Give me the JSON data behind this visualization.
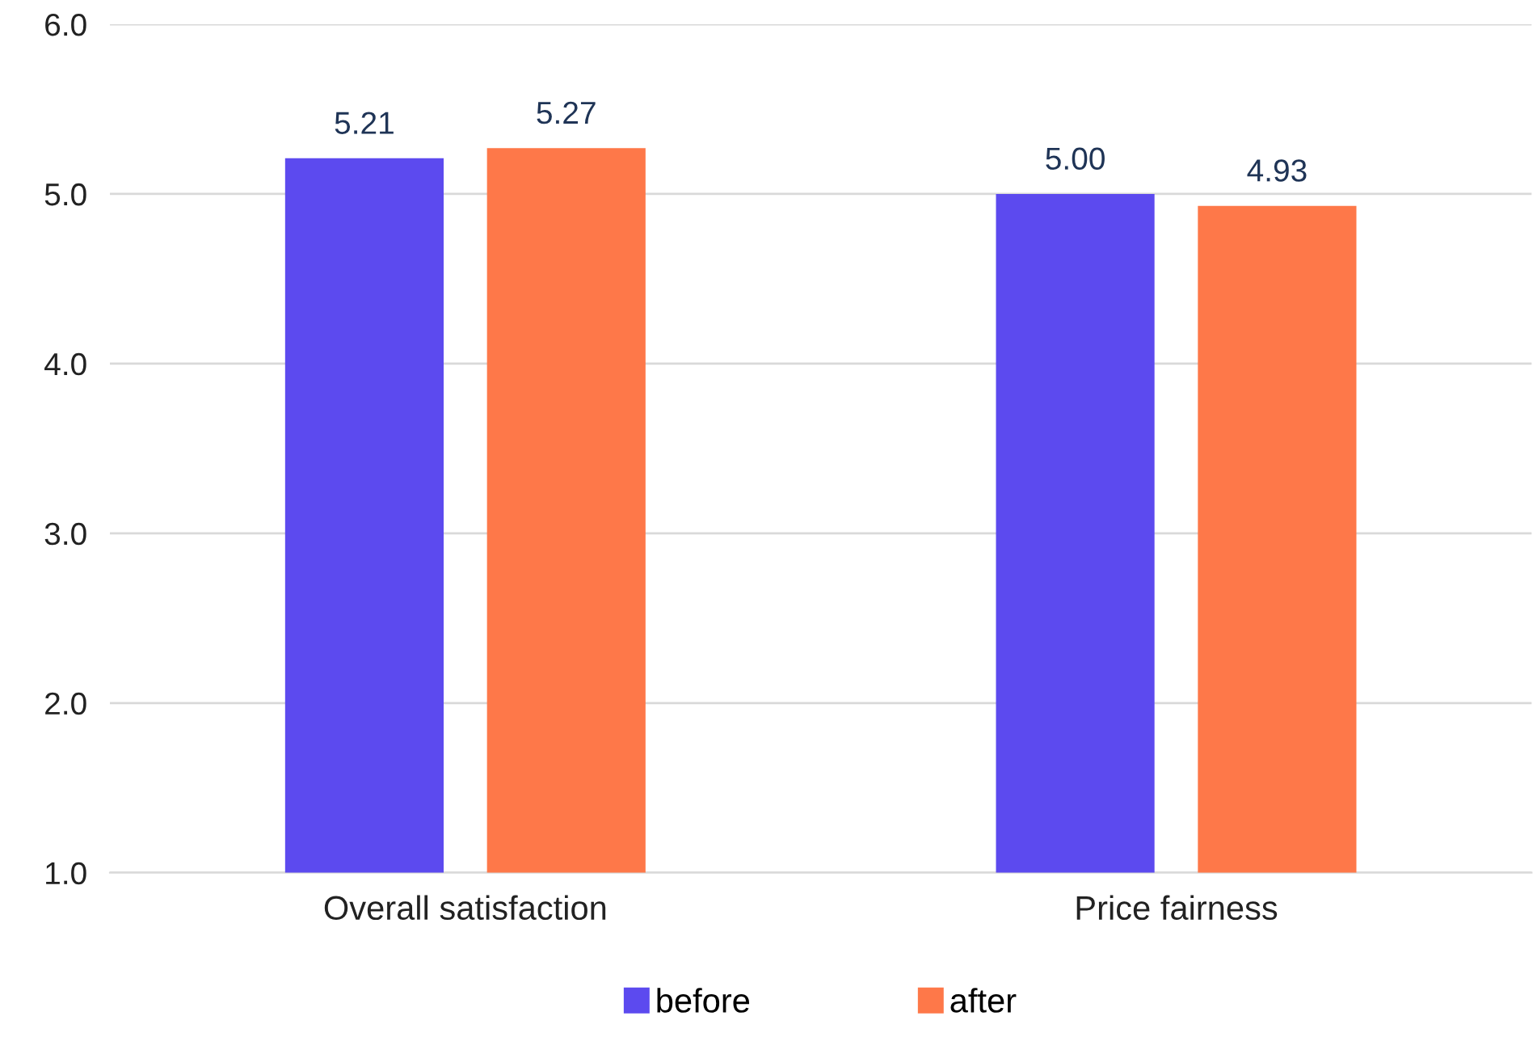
{
  "chart_data": {
    "type": "bar",
    "categories": [
      "Overall satisfaction",
      "Price fairness"
    ],
    "series": [
      {
        "name": "before",
        "color": "#5c4aef",
        "values": [
          5.21,
          5.0
        ],
        "value_labels": [
          "5.21",
          "5.00"
        ]
      },
      {
        "name": "after",
        "color": "#fe7849",
        "values": [
          5.27,
          4.93
        ],
        "value_labels": [
          "5.27",
          "4.93"
        ]
      }
    ],
    "ylim": [
      1.0,
      6.0
    ],
    "yticks": [
      {
        "value": 1,
        "label": "1.0"
      },
      {
        "value": 2,
        "label": "2.0"
      },
      {
        "value": 3,
        "label": "3.0"
      },
      {
        "value": 4,
        "label": "4.0"
      },
      {
        "value": 5,
        "label": "5.0"
      },
      {
        "value": 6,
        "label": "6.0"
      }
    ],
    "grid": "y",
    "legend": "bottom"
  }
}
